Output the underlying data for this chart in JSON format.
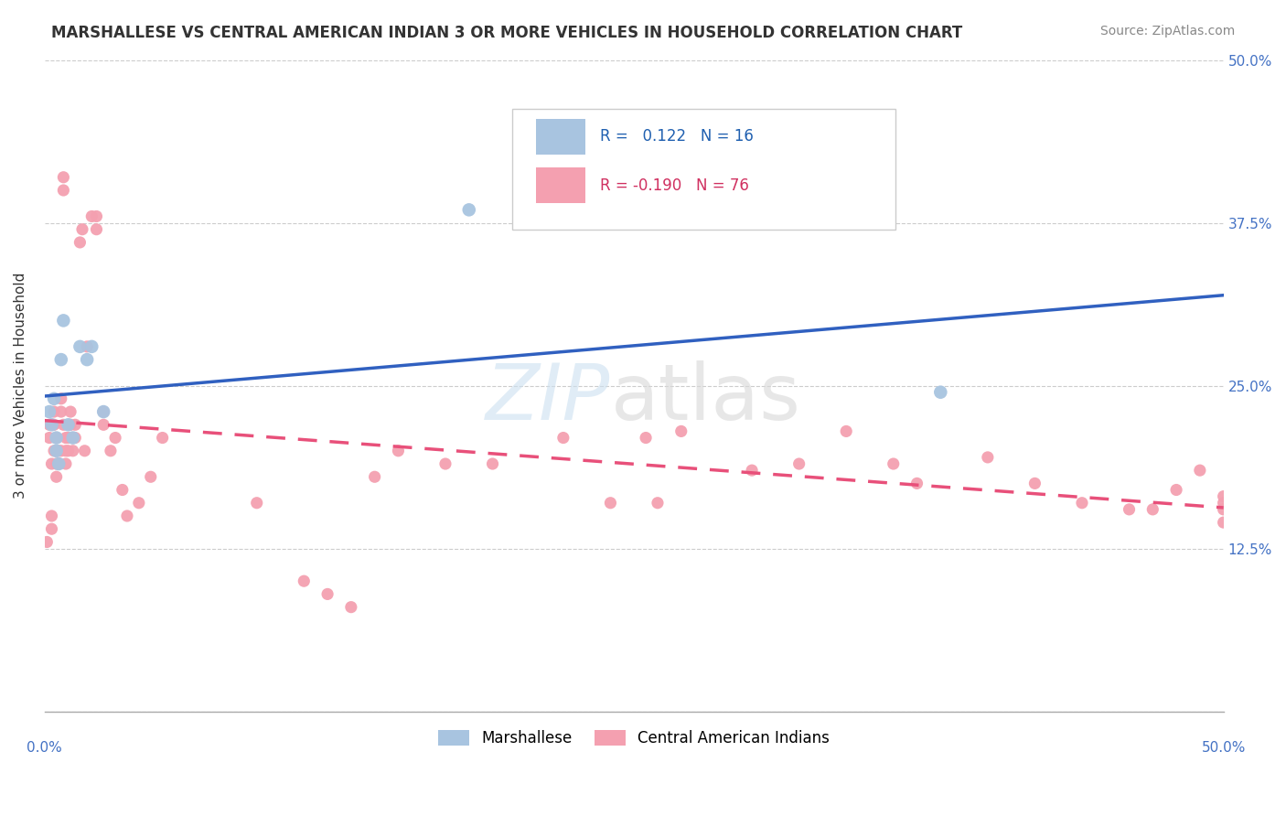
{
  "title": "MARSHALLESE VS CENTRAL AMERICAN INDIAN 3 OR MORE VEHICLES IN HOUSEHOLD CORRELATION CHART",
  "source": "Source: ZipAtlas.com",
  "ylabel": "3 or more Vehicles in Household",
  "ytick_labels": [
    "",
    "12.5%",
    "25.0%",
    "37.5%",
    "50.0%"
  ],
  "xlim": [
    0.0,
    0.5
  ],
  "ylim": [
    0.0,
    0.5
  ],
  "color_blue": "#a8c4e0",
  "color_pink": "#f4a0b0",
  "line_color_blue": "#3060c0",
  "line_color_pink": "#e8507a",
  "marshallese_x": [
    0.002,
    0.003,
    0.004,
    0.005,
    0.005,
    0.006,
    0.007,
    0.008,
    0.01,
    0.012,
    0.015,
    0.018,
    0.02,
    0.025,
    0.18,
    0.38
  ],
  "marshallese_y": [
    0.23,
    0.22,
    0.24,
    0.21,
    0.2,
    0.19,
    0.27,
    0.3,
    0.22,
    0.21,
    0.28,
    0.27,
    0.28,
    0.23,
    0.385,
    0.245
  ],
  "central_american_x": [
    0.001,
    0.002,
    0.002,
    0.003,
    0.003,
    0.003,
    0.004,
    0.004,
    0.004,
    0.005,
    0.005,
    0.005,
    0.006,
    0.006,
    0.007,
    0.007,
    0.007,
    0.008,
    0.008,
    0.008,
    0.009,
    0.009,
    0.009,
    0.01,
    0.01,
    0.011,
    0.011,
    0.012,
    0.012,
    0.013,
    0.013,
    0.015,
    0.016,
    0.017,
    0.018,
    0.02,
    0.022,
    0.022,
    0.025,
    0.025,
    0.028,
    0.03,
    0.033,
    0.035,
    0.04,
    0.045,
    0.05,
    0.09,
    0.11,
    0.12,
    0.13,
    0.14,
    0.15,
    0.17,
    0.19,
    0.22,
    0.24,
    0.255,
    0.26,
    0.27,
    0.3,
    0.32,
    0.34,
    0.36,
    0.37,
    0.4,
    0.42,
    0.44,
    0.46,
    0.47,
    0.48,
    0.49,
    0.5,
    0.5,
    0.5,
    0.5
  ],
  "central_american_y": [
    0.13,
    0.22,
    0.21,
    0.15,
    0.14,
    0.19,
    0.23,
    0.22,
    0.2,
    0.21,
    0.19,
    0.18,
    0.2,
    0.19,
    0.24,
    0.23,
    0.2,
    0.41,
    0.4,
    0.22,
    0.21,
    0.2,
    0.19,
    0.21,
    0.2,
    0.23,
    0.22,
    0.21,
    0.2,
    0.22,
    0.21,
    0.36,
    0.37,
    0.2,
    0.28,
    0.38,
    0.38,
    0.37,
    0.23,
    0.22,
    0.2,
    0.21,
    0.17,
    0.15,
    0.16,
    0.18,
    0.21,
    0.16,
    0.1,
    0.09,
    0.08,
    0.18,
    0.2,
    0.19,
    0.19,
    0.21,
    0.16,
    0.21,
    0.16,
    0.215,
    0.185,
    0.19,
    0.215,
    0.19,
    0.175,
    0.195,
    0.175,
    0.16,
    0.155,
    0.155,
    0.17,
    0.185,
    0.16,
    0.165,
    0.155,
    0.145
  ]
}
